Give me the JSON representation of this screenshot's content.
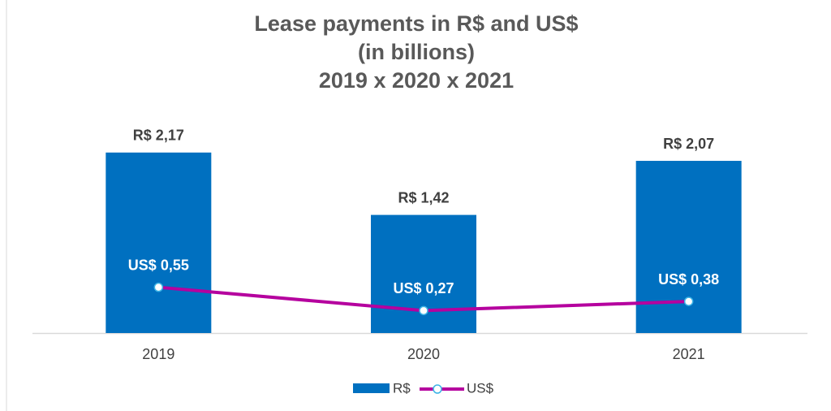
{
  "chart_data": {
    "type": "bar-line",
    "title": [
      "Lease payments in R$ and US$",
      "(in billions)",
      "2019 x 2020 x 2021"
    ],
    "categories": [
      "2019",
      "2020",
      "2021"
    ],
    "ylim": [
      0,
      2.5
    ],
    "series": [
      {
        "name": "R$",
        "type": "bar",
        "color": "#0070c0",
        "values": [
          2.17,
          1.42,
          2.07
        ],
        "value_labels": [
          "R$  2,17",
          "R$  1,42",
          "R$  2,07"
        ]
      },
      {
        "name": "US$",
        "type": "line",
        "color": "#b5009e",
        "values": [
          0.55,
          0.27,
          0.38
        ],
        "value_labels": [
          "US$  0,55",
          "US$  0,27",
          "US$  0,38"
        ]
      }
    ]
  }
}
